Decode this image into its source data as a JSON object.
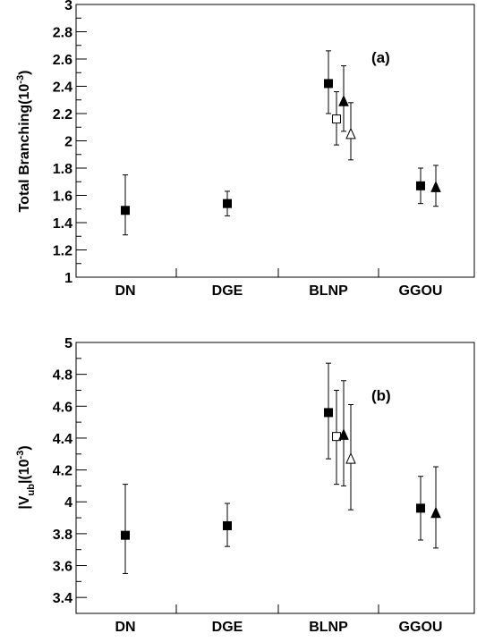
{
  "chart_data": [
    {
      "type": "scatter",
      "panel_label": "(a)",
      "ylabel_main": "Total Branching(10",
      "ylabel_sup": "-3",
      "ylabel_end": ")",
      "categories": [
        "DN",
        "DGE",
        "BLNP",
        "GGOU"
      ],
      "ylim": [
        1,
        3
      ],
      "yticks": [
        "1",
        "1.2",
        "1.4",
        "1.6",
        "1.8",
        "2",
        "2.2",
        "2.4",
        "2.6",
        "2.8",
        "3"
      ],
      "series": [
        {
          "marker": "filled-square",
          "points": [
            {
              "category": "DN",
              "y": 1.49,
              "err": [
                1.31,
                1.75
              ]
            },
            {
              "category": "DGE",
              "y": 1.54,
              "err": [
                1.45,
                1.63
              ]
            },
            {
              "category": "BLNP",
              "y": 2.42,
              "err": [
                2.2,
                2.66
              ]
            },
            {
              "category": "GGOU",
              "y": 1.67,
              "err": [
                1.54,
                1.8
              ]
            }
          ]
        },
        {
          "marker": "open-square",
          "points": [
            {
              "category": "BLNP",
              "y": 2.16,
              "err": [
                1.97,
                2.36
              ]
            }
          ]
        },
        {
          "marker": "filled-triangle",
          "points": [
            {
              "category": "BLNP",
              "y": 2.29,
              "err": [
                2.07,
                2.55
              ]
            },
            {
              "category": "GGOU",
              "y": 1.66,
              "err": [
                1.52,
                1.82
              ]
            }
          ]
        },
        {
          "marker": "open-triangle",
          "points": [
            {
              "category": "BLNP",
              "y": 2.05,
              "err": [
                1.86,
                2.28
              ]
            }
          ]
        }
      ]
    },
    {
      "type": "scatter",
      "panel_label": "(b)",
      "ylabel_main": "|V",
      "ylabel_sub": "ub",
      "ylabel_mid": "|(10",
      "ylabel_sup": "-3",
      "ylabel_end": ")",
      "categories": [
        "DN",
        "DGE",
        "BLNP",
        "GGOU"
      ],
      "ylim": [
        3.3,
        5
      ],
      "yticks": [
        "3.4",
        "3.6",
        "3.8",
        "4",
        "4.2",
        "4.4",
        "4.6",
        "4.8",
        "5"
      ],
      "series": [
        {
          "marker": "filled-square",
          "points": [
            {
              "category": "DN",
              "y": 3.79,
              "err": [
                3.55,
                4.11
              ]
            },
            {
              "category": "DGE",
              "y": 3.85,
              "err": [
                3.72,
                3.99
              ]
            },
            {
              "category": "BLNP",
              "y": 4.56,
              "err": [
                4.27,
                4.87
              ]
            },
            {
              "category": "GGOU",
              "y": 3.96,
              "err": [
                3.76,
                4.16
              ]
            }
          ]
        },
        {
          "marker": "open-square",
          "points": [
            {
              "category": "BLNP",
              "y": 4.41,
              "err": [
                4.11,
                4.7
              ]
            }
          ]
        },
        {
          "marker": "filled-triangle",
          "points": [
            {
              "category": "BLNP",
              "y": 4.42,
              "err": [
                4.1,
                4.76
              ]
            },
            {
              "category": "GGOU",
              "y": 3.93,
              "err": [
                3.71,
                4.22
              ]
            }
          ]
        },
        {
          "marker": "open-triangle",
          "points": [
            {
              "category": "BLNP",
              "y": 4.27,
              "err": [
                3.95,
                4.61
              ]
            }
          ]
        }
      ]
    }
  ]
}
